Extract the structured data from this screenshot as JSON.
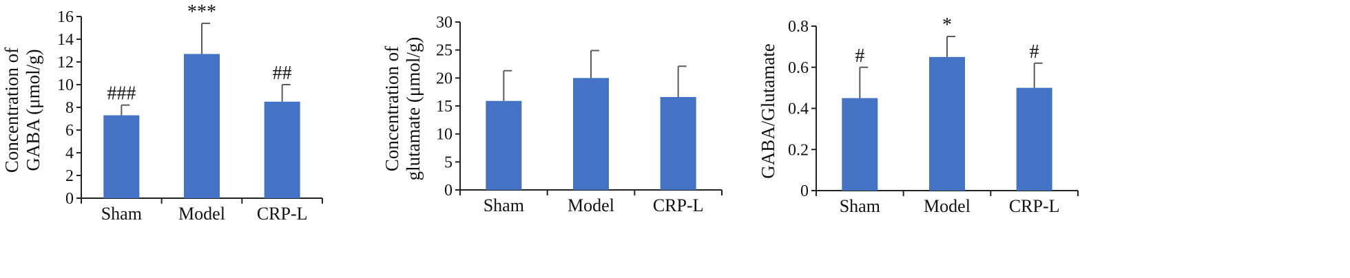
{
  "chart_data": [
    {
      "type": "bar",
      "categories": [
        "Sham",
        "Model",
        "CRP-L"
      ],
      "values": [
        7.3,
        12.7,
        8.5
      ],
      "errors": [
        0.9,
        2.7,
        1.5
      ],
      "significance": [
        "###",
        "***",
        "##"
      ],
      "ylabel_lines": [
        "Concentration of",
        "GABA (μmol/g)"
      ],
      "ylim": [
        0,
        16
      ],
      "yticks": [
        "0",
        "2",
        "4",
        "6",
        "8",
        "10",
        "12",
        "14",
        "16"
      ],
      "bar_color": "#4472c4"
    },
    {
      "type": "bar",
      "categories": [
        "Sham",
        "Model",
        "CRP-L"
      ],
      "values": [
        15.9,
        20.0,
        16.6
      ],
      "errors": [
        5.4,
        4.9,
        5.5
      ],
      "significance": [
        "",
        "",
        ""
      ],
      "ylabel_lines": [
        "Concentration of",
        "glutamate (μmol/g)"
      ],
      "ylim": [
        0,
        30
      ],
      "yticks": [
        "0",
        "5",
        "10",
        "15",
        "20",
        "25",
        "30"
      ],
      "bar_color": "#4472c4"
    },
    {
      "type": "bar",
      "categories": [
        "Sham",
        "Model",
        "CRP-L"
      ],
      "values": [
        0.45,
        0.65,
        0.5
      ],
      "errors": [
        0.15,
        0.1,
        0.12
      ],
      "significance": [
        "#",
        "*",
        "#"
      ],
      "ylabel_lines": [
        "GABA/Glutamate"
      ],
      "ylim": [
        0,
        0.8
      ],
      "yticks": [
        "0",
        "0.2",
        "0.4",
        "0.6",
        "0.8"
      ],
      "bar_color": "#4472c4"
    }
  ]
}
